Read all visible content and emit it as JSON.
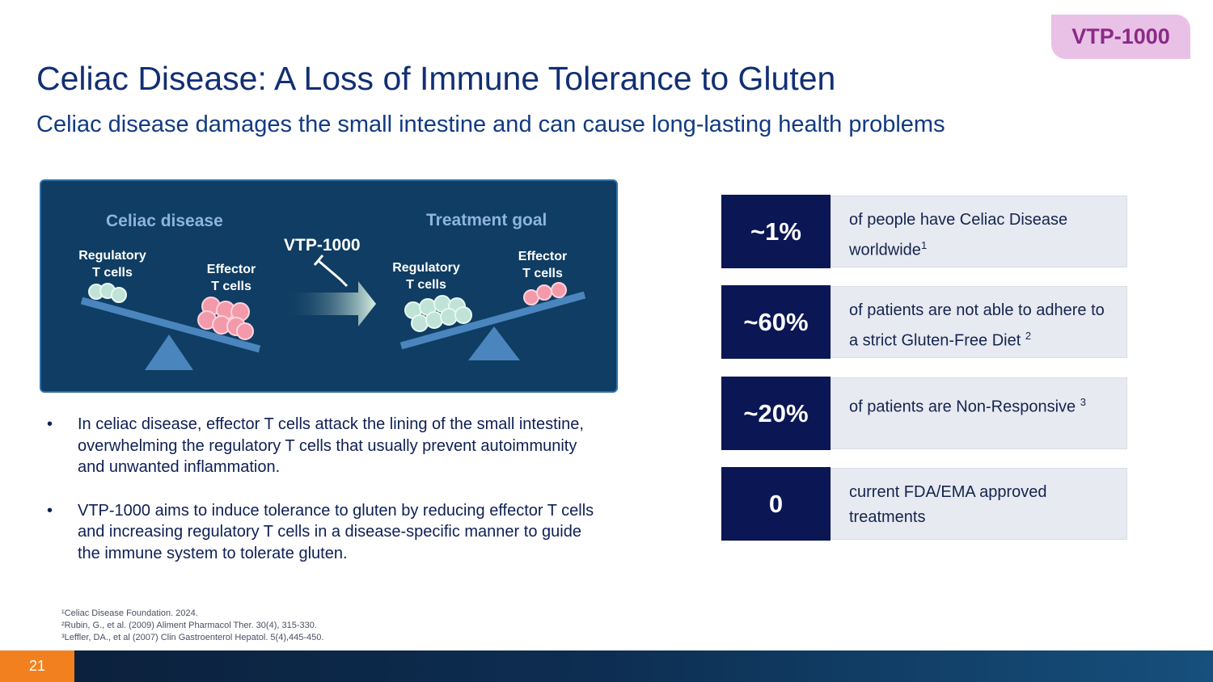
{
  "badge": "VTP-1000",
  "title": "Celiac Disease: A Loss of Immune Tolerance to Gluten",
  "subtitle": "Celiac disease damages the small intestine and can cause long-lasting health problems",
  "diagram": {
    "left_heading": "Celiac disease",
    "right_heading": "Treatment goal",
    "arrow_label": "VTP-1000",
    "left_regulatory_line1": "Regulatory",
    "left_regulatory_line2": "T cells",
    "left_effector_line1": "Effector",
    "left_effector_line2": "T cells",
    "right_regulatory_line1": "Regulatory",
    "right_regulatory_line2": "T cells",
    "right_effector_line1": "Effector",
    "right_effector_line2": "T cells",
    "colors": {
      "panel": "#0f3d63",
      "regulatory_cells": "#bfe3d6",
      "effector_cells": "#f29aaa",
      "seesaw": "#4a86bd"
    }
  },
  "bullets": [
    "In celiac disease, effector T cells attack the lining of the small intestine, overwhelming the regulatory T cells that usually prevent autoimmunity and unwanted inflammation.",
    "VTP-1000 aims to induce tolerance to gluten by reducing effector T cells and increasing regulatory T cells in a disease-specific manner to guide the immune system to tolerate gluten."
  ],
  "bullet_symbol": "•",
  "stats": [
    {
      "value": "~1%",
      "text": "of people have Celiac Disease worldwide",
      "ref": "1"
    },
    {
      "value": "~60%",
      "text": "of patients are not able to adhere to a strict Gluten-Free Diet",
      "ref": "2"
    },
    {
      "value": "~20%",
      "text": "of patients are Non-Responsive",
      "ref": "3"
    },
    {
      "value": "0",
      "text": "current FDA/EMA approved treatments",
      "ref": ""
    }
  ],
  "references": [
    "¹Celiac Disease Foundation. 2024.",
    "²Rubin, G., et al. (2009) Aliment Pharmacol Ther. 30(4), 315-330.",
    "³Leffler, DA., et al (2007) Clin Gastroenterol Hepatol. 5(4),445-450."
  ],
  "page_number": "21"
}
